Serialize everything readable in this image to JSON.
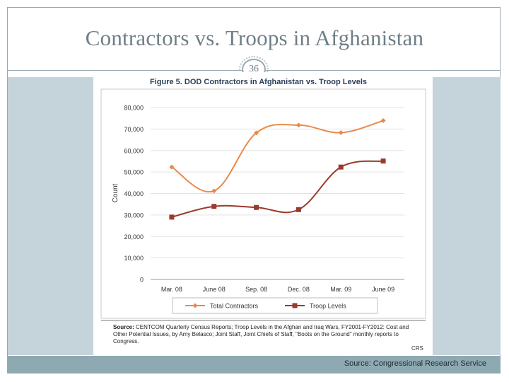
{
  "slide": {
    "title": "Contractors vs. Troops in Afghanistan",
    "page_number": "36",
    "footer_source": "Source: Congressional Research Service"
  },
  "figure": {
    "caption": "Figure 5. DOD Contractors in Afghanistan vs. Troop Levels",
    "source_label": "Source:",
    "source_text": "CENTCOM Quarterly Census Reports; Troop Levels in the Afghan and Iraq Wars, FY2001-FY2012: Cost and Other Potential Issues, by Amy Belasco; Joint Staff, Joint Chiefs of Staff, \"Boots on the Ground\" monthly reports to Congress.",
    "small_mark": "CRS"
  },
  "chart_data": {
    "type": "line",
    "title": "Figure 5. DOD Contractors in Afghanistan vs. Troop Levels",
    "xlabel": "",
    "ylabel": "Count",
    "categories": [
      "Mar. 08",
      "June 08",
      "Sep. 08",
      "Dec. 08",
      "Mar. 09",
      "June 09"
    ],
    "yticks": [
      "0",
      "10,000",
      "20,000",
      "30,000",
      "40,000",
      "50,000",
      "60,000",
      "70,000",
      "80,000"
    ],
    "ylim": [
      0,
      80000
    ],
    "grid": true,
    "legend_position": "bottom",
    "series": [
      {
        "name": "Total Contractors",
        "color": "#e98a4c",
        "marker": "diamond",
        "values": [
          52300,
          41200,
          68200,
          71800,
          68300,
          73900
        ]
      },
      {
        "name": "Troop Levels",
        "color": "#9a3a2a",
        "marker": "square",
        "values": [
          29000,
          34000,
          33500,
          32500,
          52300,
          55100
        ]
      }
    ]
  }
}
